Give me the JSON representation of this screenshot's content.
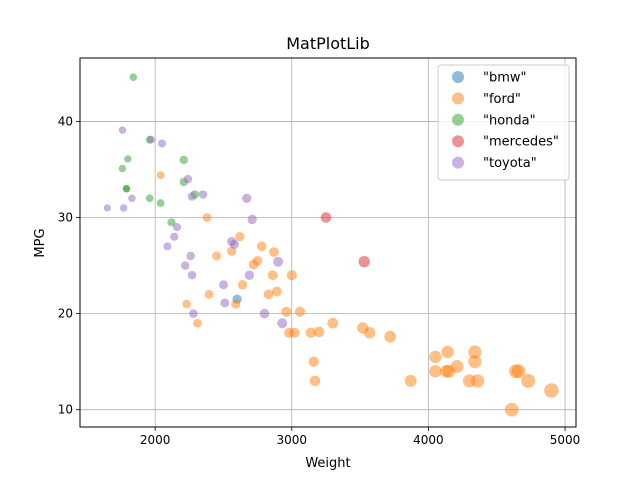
{
  "chart_data": {
    "type": "scatter",
    "title": "MatPlotLib",
    "xlabel": "Weight",
    "ylabel": "MPG",
    "xlim": [
      1450,
      5080
    ],
    "ylim": [
      8.2,
      46.6
    ],
    "xticks": [
      2000,
      3000,
      4000,
      5000
    ],
    "yticks": [
      10,
      20,
      30,
      40
    ],
    "grid": true,
    "legend_position": "top-right",
    "series": [
      {
        "name": "\"bmw\"",
        "color": "#1f77b4",
        "points": [
          [
            2600,
            21.5
          ]
        ]
      },
      {
        "name": "\"ford\"",
        "color": "#ff7f0e",
        "points": [
          [
            2040,
            34.4
          ],
          [
            2230,
            21.0
          ],
          [
            2310,
            19.0
          ],
          [
            2380,
            30.0
          ],
          [
            2395,
            22.0
          ],
          [
            2450,
            26.0
          ],
          [
            2560,
            26.5
          ],
          [
            2590,
            21.0
          ],
          [
            2620,
            28.0
          ],
          [
            2640,
            23.0
          ],
          [
            2720,
            25.1
          ],
          [
            2750,
            25.5
          ],
          [
            2780,
            27.0
          ],
          [
            2830,
            22.0
          ],
          [
            2860,
            24.0
          ],
          [
            2870,
            26.4
          ],
          [
            2890,
            22.3
          ],
          [
            2960,
            20.2
          ],
          [
            2980,
            18.0
          ],
          [
            3000,
            24.0
          ],
          [
            3020,
            18.0
          ],
          [
            3060,
            20.2
          ],
          [
            3140,
            18.0
          ],
          [
            3160,
            15.0
          ],
          [
            3170,
            13.0
          ],
          [
            3200,
            18.1
          ],
          [
            3300,
            19.0
          ],
          [
            3520,
            18.5
          ],
          [
            3570,
            18.0
          ],
          [
            3720,
            17.6
          ],
          [
            3870,
            13.0
          ],
          [
            4050,
            14.0
          ],
          [
            4050,
            15.5
          ],
          [
            4130,
            14.0
          ],
          [
            4140,
            16.0
          ],
          [
            4150,
            14.0
          ],
          [
            4210,
            14.5
          ],
          [
            4300,
            13.0
          ],
          [
            4340,
            16.0
          ],
          [
            4340,
            15.0
          ],
          [
            4360,
            13.0
          ],
          [
            4610,
            10.0
          ],
          [
            4640,
            14.0
          ],
          [
            4660,
            14.0
          ],
          [
            4730,
            13.0
          ],
          [
            4900,
            12.0
          ]
        ]
      },
      {
        "name": "\"honda\"",
        "color": "#2ca02c",
        "points": [
          [
            1840,
            44.6
          ],
          [
            1960,
            38.1
          ],
          [
            1800,
            36.1
          ],
          [
            1760,
            35.1
          ],
          [
            1790,
            33.0
          ],
          [
            1790,
            33.0
          ],
          [
            1960,
            32.0
          ],
          [
            2040,
            31.5
          ],
          [
            2210,
            36.0
          ],
          [
            2210,
            33.7
          ],
          [
            2290,
            32.4
          ],
          [
            2120,
            29.5
          ]
        ]
      },
      {
        "name": "\"mercedes\"",
        "color": "#d62728",
        "points": [
          [
            3250,
            30.0
          ],
          [
            3530,
            25.4
          ]
        ]
      },
      {
        "name": "\"toyota\"",
        "color": "#9467bd",
        "points": [
          [
            1650,
            31.0
          ],
          [
            1770,
            31.0
          ],
          [
            1760,
            39.1
          ],
          [
            1830,
            32.0
          ],
          [
            1970,
            38.1
          ],
          [
            2050,
            37.7
          ],
          [
            2240,
            34.0
          ],
          [
            2270,
            32.2
          ],
          [
            2350,
            32.4
          ],
          [
            2670,
            32.0
          ],
          [
            2090,
            27.0
          ],
          [
            2140,
            28.0
          ],
          [
            2160,
            29.0
          ],
          [
            2220,
            25.0
          ],
          [
            2260,
            26.0
          ],
          [
            2270,
            24.0
          ],
          [
            2280,
            20.0
          ],
          [
            2500,
            23.0
          ],
          [
            2510,
            21.1
          ],
          [
            2560,
            27.5
          ],
          [
            2580,
            27.2
          ],
          [
            2690,
            24.0
          ],
          [
            2710,
            29.8
          ],
          [
            2800,
            20.0
          ],
          [
            2900,
            25.4
          ],
          [
            2930,
            19.0
          ]
        ]
      }
    ]
  }
}
